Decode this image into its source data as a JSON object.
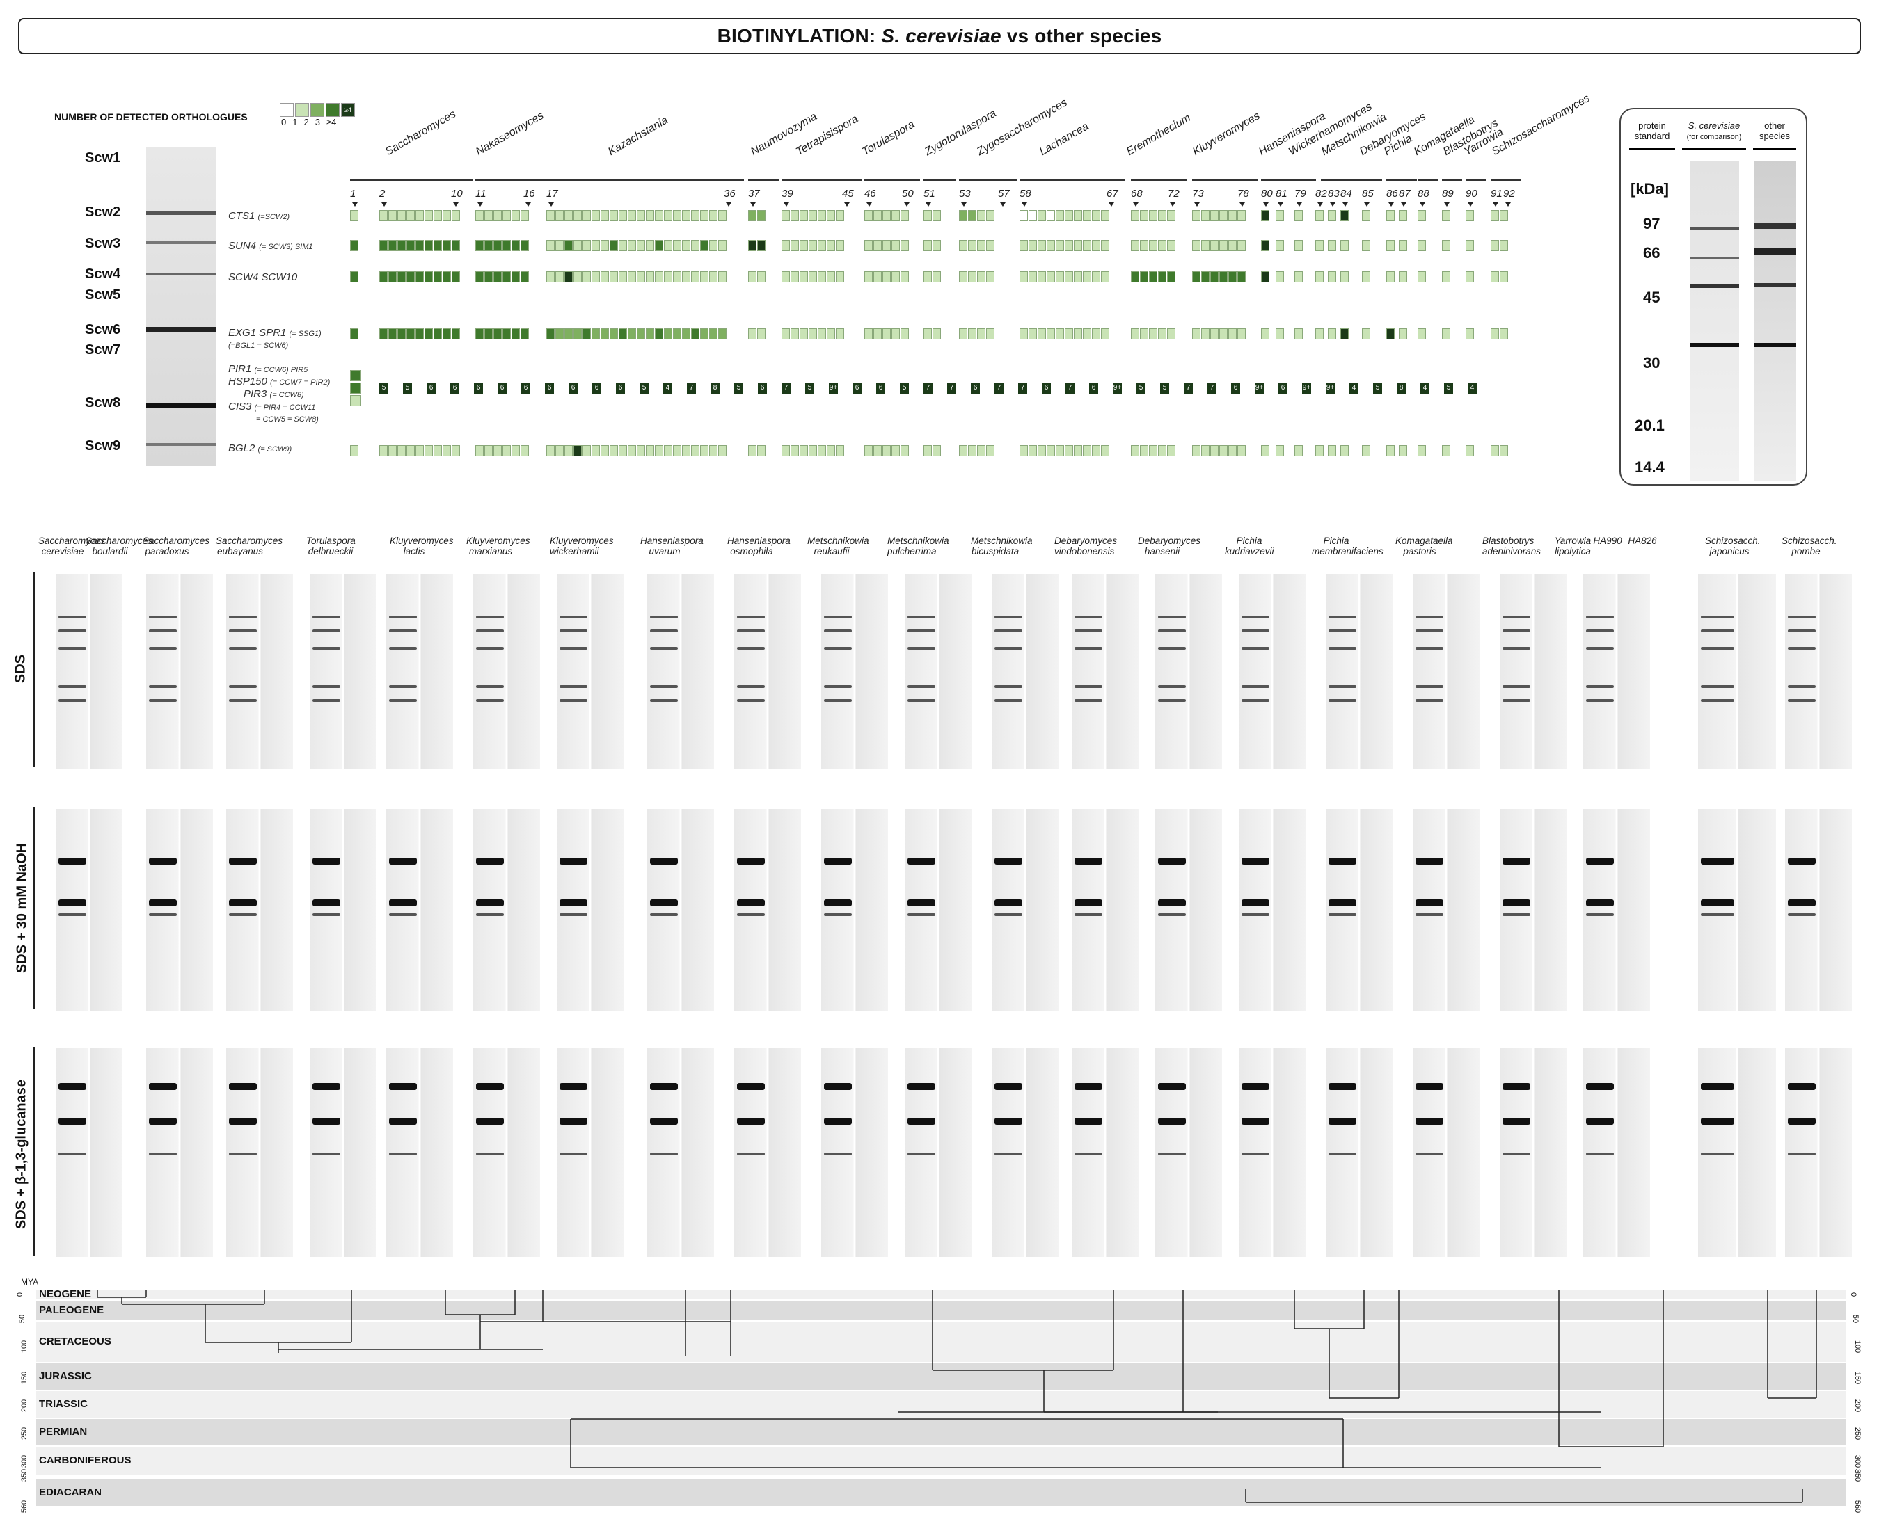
{
  "title": {
    "prefix": "BIOTINYLATION:",
    "species": "S. cerevisiae",
    "suffix": "vs other species"
  },
  "legend": {
    "heading": "NUMBER OF DETECTED ORTHOLOGUES",
    "levels": [
      "0",
      "1",
      "2",
      "3",
      "≥4"
    ],
    "colors": [
      "#ffffff",
      "#c9e3b5",
      "#7fb060",
      "#3f7a2c",
      "#1b3a18"
    ]
  },
  "scw_labels": [
    "Scw1",
    "Scw2",
    "Scw3",
    "Scw4",
    "Scw5",
    "Scw6",
    "Scw7",
    "Scw8",
    "Scw9"
  ],
  "gene_rows": [
    {
      "main": "CTS1",
      "note": "(=SCW2)"
    },
    {
      "main": "SUN4",
      "note": "(= SCW3) SIM1"
    },
    {
      "main": "SCW4 SCW10",
      "note": ""
    },
    {
      "main": "EXG1 SPR1",
      "note": "(= SSG1)",
      "note2": "(=BGL1 = SCW6)"
    },
    {
      "main": "PIR1",
      "note": "(= CCW6) PIR5"
    },
    {
      "main": "HSP150",
      "note": "(= CCW7 = PIR2)"
    },
    {
      "main": "PIR3",
      "note": "(= CCW8)"
    },
    {
      "main": "CIS3",
      "note": "(= PIR4 = CCW11",
      "note2": "= CCW5 = SCW8)"
    },
    {
      "main": "BGL2",
      "note": "(= SCW9)"
    }
  ],
  "genera": [
    "Saccharomyces",
    "Nakaseomyces",
    "Kazachstania",
    "Naumovozyma",
    "Tetrapisispora",
    "Torulaspora",
    "Zygotorulaspora",
    "Zygosaccharomyces",
    "Lachancea",
    "Eremothecium",
    "Kluyveromyces",
    "Hanseniaspora",
    "Wickerhamomyces",
    "Metschnikowia",
    "Debaryomyces",
    "Pichia",
    "Komagataella",
    "Blastobotrys",
    "Yarrowia",
    "Schizosaccharomyces"
  ],
  "column_numbers": [
    "1",
    "2",
    "10",
    "11",
    "16",
    "17",
    "36",
    "37",
    "39",
    "45",
    "46",
    "50",
    "51",
    "53",
    "57",
    "58",
    "67",
    "68",
    "72",
    "73",
    "78",
    "80",
    "81",
    "79",
    "82",
    "83",
    "84",
    "85",
    "86",
    "87",
    "88",
    "89",
    "90",
    "91",
    "92"
  ],
  "pir_counts": [
    "5",
    "5",
    "6",
    "6",
    "6",
    "6",
    "6",
    "6",
    "6",
    "6",
    "6",
    "5",
    "4",
    "7",
    "8",
    "5",
    "6",
    "7",
    "5",
    "9+",
    "6",
    "6",
    "5",
    "7",
    "7",
    "6",
    "7",
    "7",
    "6",
    "7",
    "6",
    "9+",
    "5",
    "5",
    "7",
    "7",
    "6",
    "9+",
    "6",
    "9+",
    "9+",
    "4",
    "5",
    "8",
    "4",
    "5",
    "4"
  ],
  "std_panel": {
    "headers": [
      "protein standard",
      "S. cerevisiae",
      "(for comparison)",
      "other species"
    ],
    "unit": "[kDa]",
    "markers": [
      "97",
      "66",
      "45",
      "30",
      "20.1",
      "14.4"
    ]
  },
  "species_labels": [
    "Saccharomyces cerevisiae",
    "Saccharomyces boulardii",
    "Saccharomyces paradoxus",
    "Saccharomyces eubayanus",
    "Torulaspora delbrueckii",
    "Kluyveromyces lactis",
    "Kluyveromyces marxianus",
    "Kluyveromyces wickerhamii",
    "Hanseniaspora uvarum",
    "Hanseniaspora osmophila",
    "Metschnikowia reukaufii",
    "Metschnikowia pulcherrima",
    "Metschnikowia bicuspidata",
    "Debaryomyces vindobonensis",
    "Debaryomyces hansenii",
    "Pichia kudriavzevii",
    "Pichia membranifaciens",
    "Komagataella pastoris",
    "Blastobotrys adeninivorans",
    "Yarrowia lipolytica",
    "HA990",
    "HA826",
    "Schizosacch. japonicus",
    "Schizosacch. pombe"
  ],
  "row_labels": [
    "SDS",
    "SDS + 30 mM NaOH",
    "SDS + β-1,3-glucanase"
  ],
  "timeline": {
    "unit": "MYA",
    "eras": [
      "NEOGENE",
      "PALEOGENE",
      "CRETACEOUS",
      "JURASSIC",
      "TRIASSIC",
      "PERMIAN",
      "CARBONIFEROUS",
      "EDIACARAN"
    ],
    "ticks": [
      "0",
      "50",
      "100",
      "150",
      "200",
      "250",
      "300",
      "350",
      "560"
    ]
  }
}
